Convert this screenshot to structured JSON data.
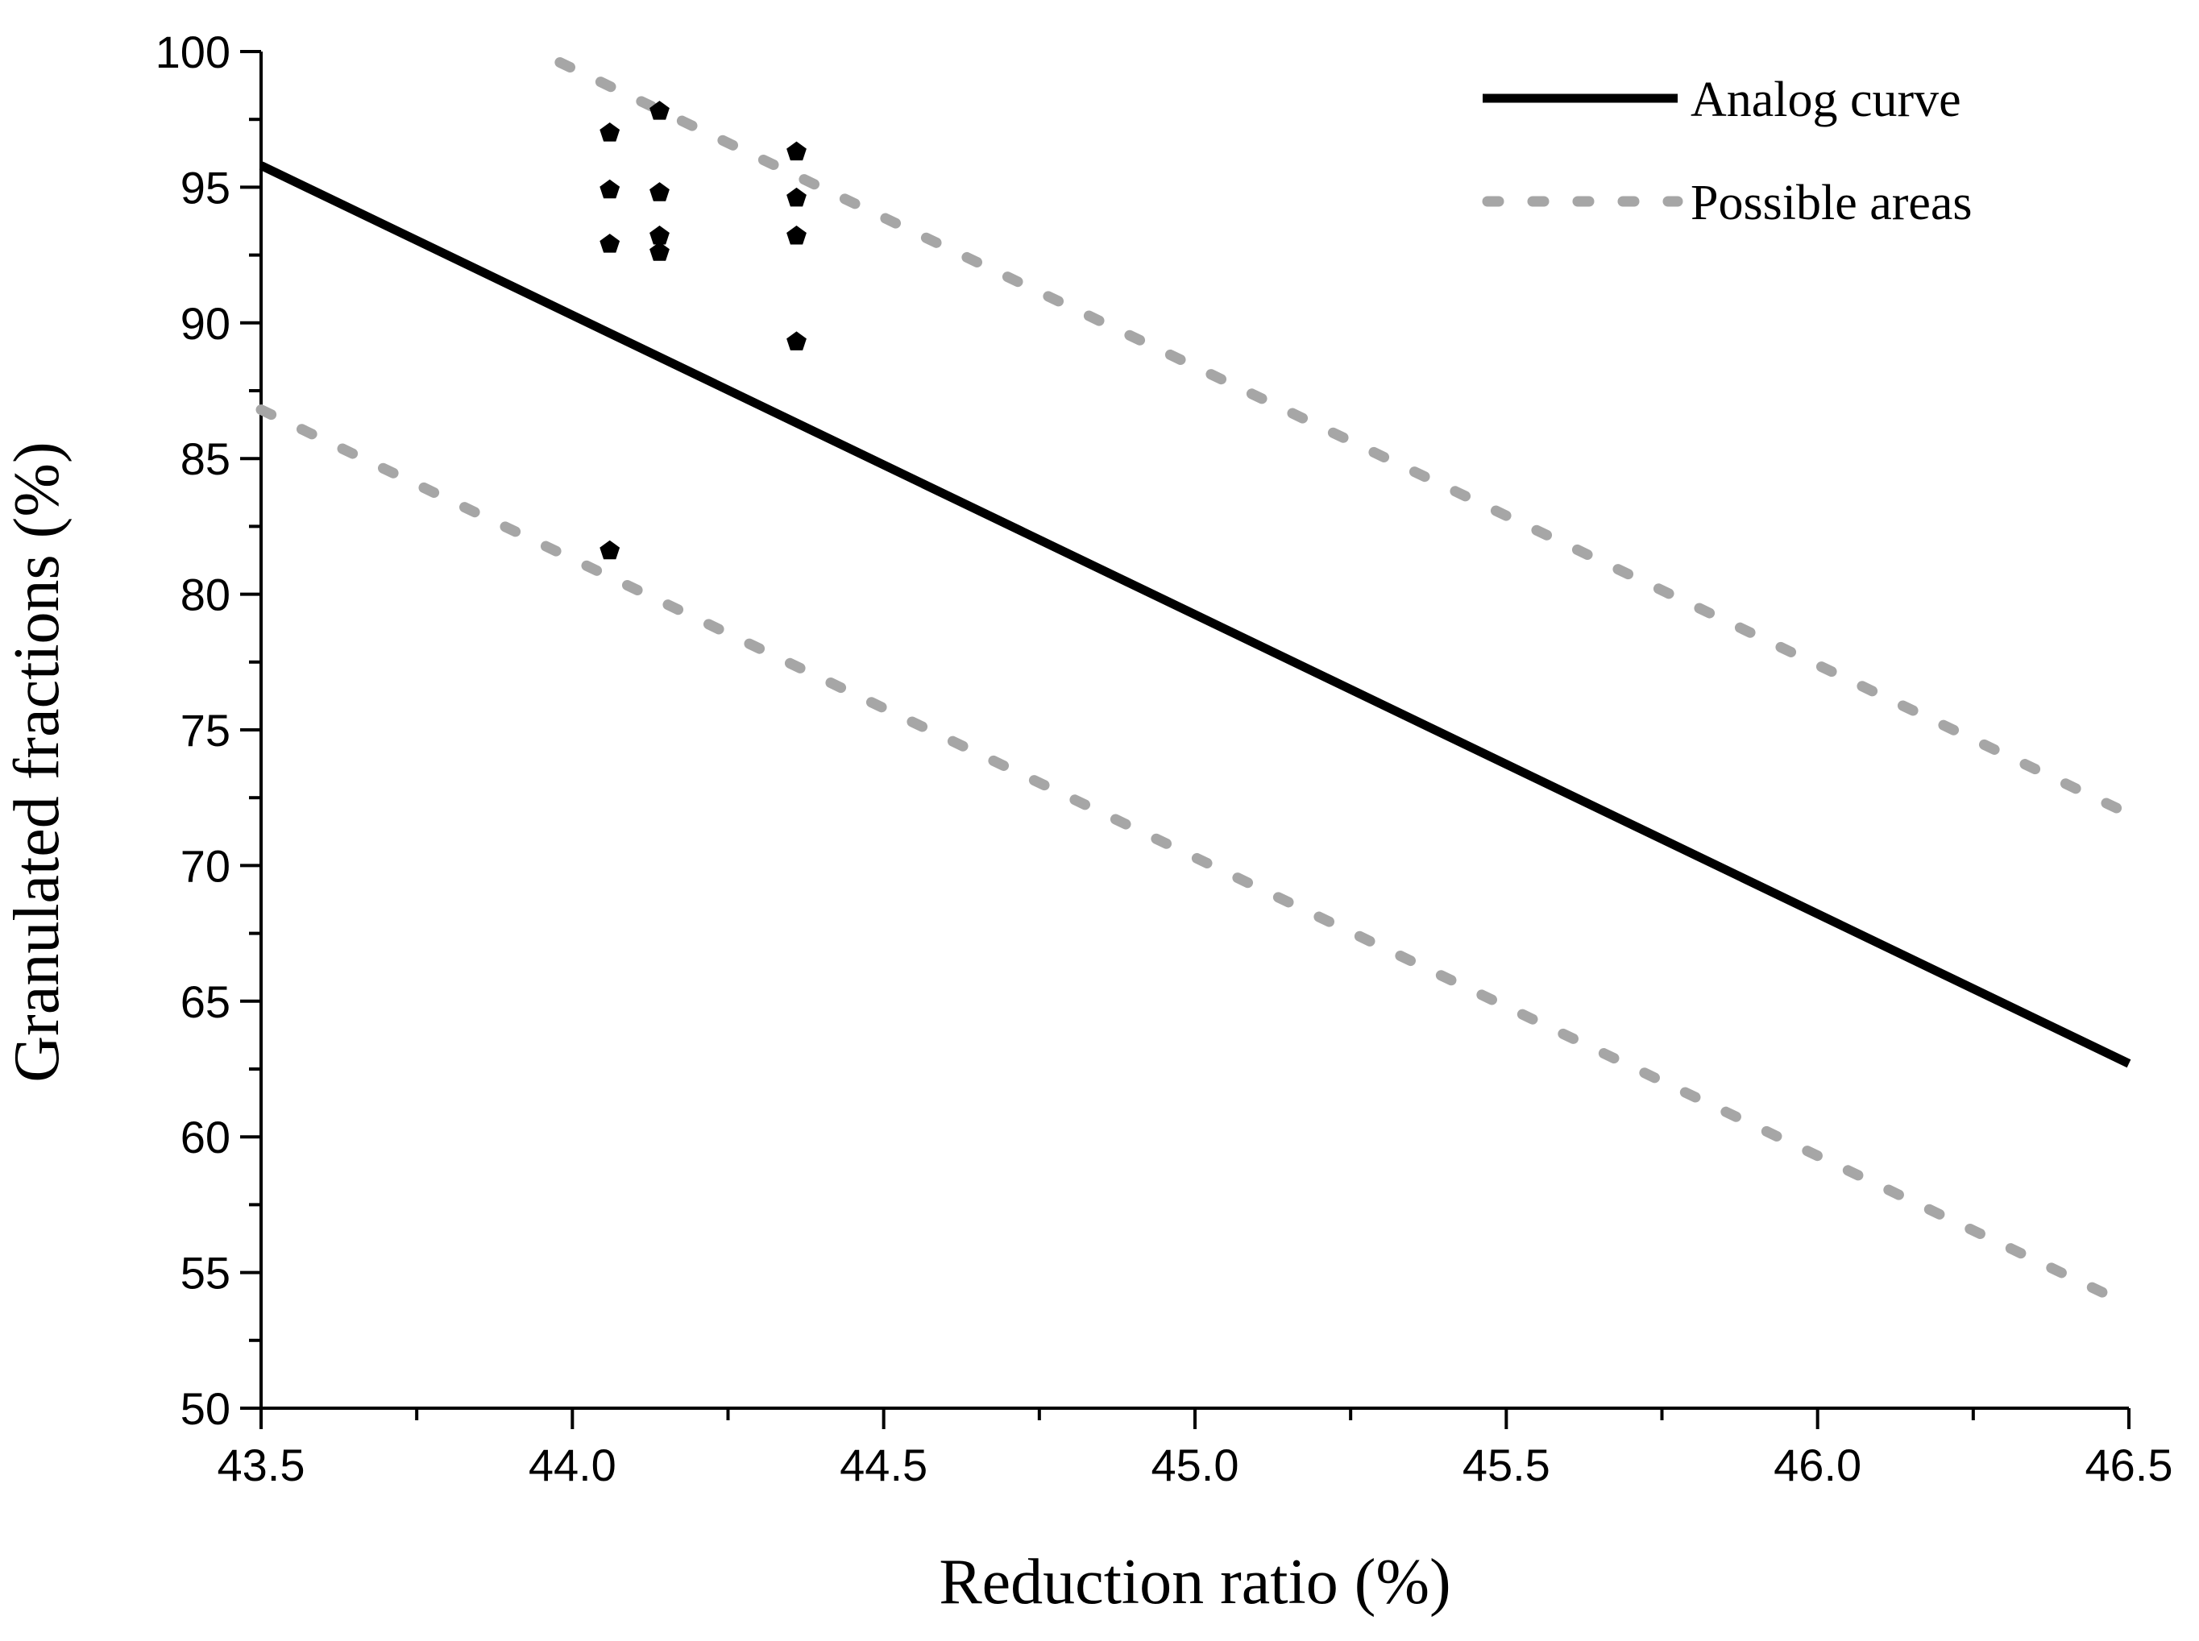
{
  "chart_data": {
    "type": "scatter",
    "xlabel": "Reduction ratio (%)",
    "ylabel": "Granulated fractions (%)",
    "xlim": [
      43.5,
      46.5
    ],
    "ylim": [
      50,
      100
    ],
    "xticks": [
      "43.5",
      "44.0",
      "44.5",
      "45.0",
      "45.5",
      "46.0",
      "46.5"
    ],
    "yticks": [
      "50",
      "55",
      "60",
      "65",
      "70",
      "75",
      "80",
      "85",
      "90",
      "95",
      "100"
    ],
    "grid": false,
    "legend_position": "top-right",
    "series": [
      {
        "name": "Analog curve",
        "kind": "line",
        "style": "solid",
        "color": "#000000",
        "x": [
          43.5,
          46.5
        ],
        "y": [
          95.8,
          62.7
        ]
      },
      {
        "name": "Possible areas",
        "kind": "line",
        "style": "dotted",
        "color": "#a6a6a6",
        "x": [
          43.98,
          46.5
        ],
        "y": [
          99.6,
          71.9
        ]
      },
      {
        "name": "",
        "kind": "line",
        "style": "dotted",
        "color": "#a6a6a6",
        "x": [
          43.5,
          46.5
        ],
        "y": [
          86.8,
          53.8
        ]
      },
      {
        "name": "",
        "kind": "scatter",
        "marker": "pentagon",
        "color": "#000000",
        "x": [
          44.06,
          44.06,
          44.06,
          44.06,
          44.14,
          44.14,
          44.14,
          44.14,
          44.36,
          44.36,
          44.36,
          44.36
        ],
        "y": [
          97.0,
          94.9,
          92.9,
          81.6,
          97.8,
          94.8,
          93.2,
          92.6,
          96.3,
          94.6,
          93.2,
          89.3
        ]
      }
    ]
  }
}
